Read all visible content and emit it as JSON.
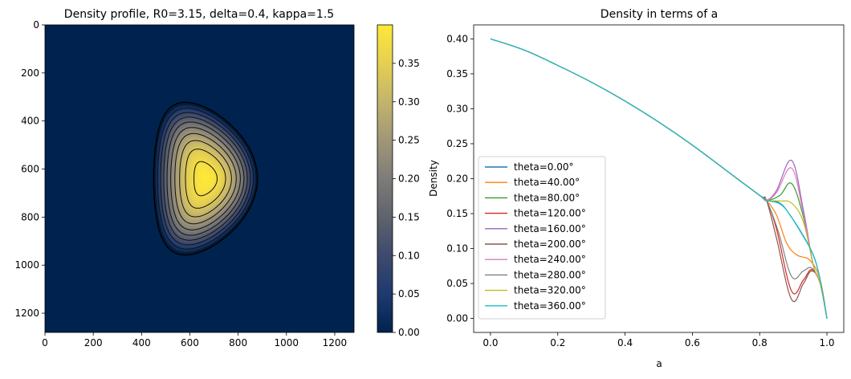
{
  "chart_data": [
    {
      "type": "heatmap",
      "title": "Density profile, R0=3.15, delta=0.4, kappa=1.5",
      "xlim": [
        0,
        1280
      ],
      "ylim": [
        1280,
        0
      ],
      "xticks": [
        0,
        200,
        400,
        600,
        800,
        1000,
        1200
      ],
      "yticks": [
        0,
        200,
        400,
        600,
        800,
        1000,
        1200
      ],
      "colormap": "cividis",
      "peak": {
        "x": 665,
        "y": 640,
        "value": 0.4
      },
      "plasma_extent": {
        "x": [
          450,
          880
        ],
        "y": [
          322,
          958
        ]
      },
      "contour_levels": [
        0.02,
        0.06,
        0.1,
        0.14,
        0.18,
        0.22,
        0.26,
        0.3,
        0.34,
        0.38
      ],
      "colorbar": {
        "min": 0.0,
        "max": 0.4,
        "ticks": [
          0.0,
          0.05,
          0.1,
          0.15,
          0.2,
          0.25,
          0.3,
          0.35
        ],
        "tick_labels": [
          "0.00",
          "0.05",
          "0.10",
          "0.15",
          "0.20",
          "0.25",
          "0.30",
          "0.35"
        ]
      }
    },
    {
      "type": "line",
      "title": "Density in terms of a",
      "xlabel": "a",
      "ylabel": "Density",
      "xlim": [
        -0.05,
        1.05
      ],
      "ylim": [
        -0.02,
        0.42
      ],
      "xticks": [
        0.0,
        0.2,
        0.4,
        0.6,
        0.8,
        1.0
      ],
      "xtick_labels": [
        "0.0",
        "0.2",
        "0.4",
        "0.6",
        "0.8",
        "1.0"
      ],
      "yticks": [
        0.0,
        0.05,
        0.1,
        0.15,
        0.2,
        0.25,
        0.3,
        0.35,
        0.4
      ],
      "ytick_labels": [
        "0.00",
        "0.05",
        "0.10",
        "0.15",
        "0.20",
        "0.25",
        "0.30",
        "0.35",
        "0.40"
      ],
      "legend_position": "lower-left",
      "base_x": [
        0.0,
        0.1,
        0.2,
        0.3,
        0.4,
        0.5,
        0.6,
        0.7,
        0.8,
        0.82
      ],
      "base_y": [
        0.4,
        0.384,
        0.362,
        0.338,
        0.311,
        0.281,
        0.248,
        0.212,
        0.176,
        0.169
      ],
      "series": [
        {
          "name": "theta=0.00°",
          "color": "#1f77b4",
          "x": [
            0.82,
            0.86,
            0.89,
            0.93,
            0.96,
            0.98,
            1.0
          ],
          "y": [
            0.169,
            0.165,
            0.148,
            0.118,
            0.09,
            0.055,
            0.0
          ]
        },
        {
          "name": "theta=40.00°",
          "color": "#ff7f0e",
          "x": [
            0.82,
            0.85,
            0.88,
            0.91,
            0.95,
            0.98,
            1.0
          ],
          "y": [
            0.169,
            0.148,
            0.108,
            0.091,
            0.083,
            0.055,
            0.0
          ]
        },
        {
          "name": "theta=80.00°",
          "color": "#2ca02c",
          "x": [
            0.82,
            0.86,
            0.895,
            0.93,
            0.96,
            0.98,
            1.0
          ],
          "y": [
            0.169,
            0.176,
            0.193,
            0.145,
            0.075,
            0.05,
            0.0
          ]
        },
        {
          "name": "theta=120.00°",
          "color": "#d62728",
          "x": [
            0.82,
            0.85,
            0.895,
            0.93,
            0.955,
            0.98,
            1.0
          ],
          "y": [
            0.169,
            0.128,
            0.039,
            0.055,
            0.07,
            0.05,
            0.0
          ]
        },
        {
          "name": "theta=160.00°",
          "color": "#9467bd",
          "x": [
            0.82,
            0.85,
            0.895,
            0.93,
            0.96,
            0.98,
            1.0
          ],
          "y": [
            0.169,
            0.183,
            0.226,
            0.155,
            0.075,
            0.05,
            0.0
          ]
        },
        {
          "name": "theta=200.00°",
          "color": "#8c564b",
          "x": [
            0.82,
            0.85,
            0.895,
            0.93,
            0.955,
            0.98,
            1.0
          ],
          "y": [
            0.169,
            0.115,
            0.027,
            0.05,
            0.068,
            0.05,
            0.0
          ]
        },
        {
          "name": "theta=240.00°",
          "color": "#e377c2",
          "x": [
            0.82,
            0.85,
            0.895,
            0.93,
            0.96,
            0.98,
            1.0
          ],
          "y": [
            0.169,
            0.18,
            0.215,
            0.15,
            0.075,
            0.05,
            0.0
          ]
        },
        {
          "name": "theta=280.00°",
          "color": "#7f7f7f",
          "x": [
            0.82,
            0.855,
            0.895,
            0.93,
            0.955,
            0.98,
            1.0
          ],
          "y": [
            0.169,
            0.125,
            0.06,
            0.068,
            0.072,
            0.05,
            0.0
          ]
        },
        {
          "name": "theta=320.00°",
          "color": "#bcbd22",
          "x": [
            0.82,
            0.86,
            0.895,
            0.93,
            0.96,
            0.98,
            1.0
          ],
          "y": [
            0.169,
            0.168,
            0.165,
            0.138,
            0.075,
            0.05,
            0.0
          ]
        },
        {
          "name": "theta=360.00°",
          "color": "#17becf",
          "x": [
            0.82,
            0.86,
            0.89,
            0.93,
            0.96,
            0.98,
            1.0
          ],
          "y": [
            0.169,
            0.164,
            0.148,
            0.117,
            0.09,
            0.055,
            0.0
          ]
        }
      ]
    }
  ]
}
